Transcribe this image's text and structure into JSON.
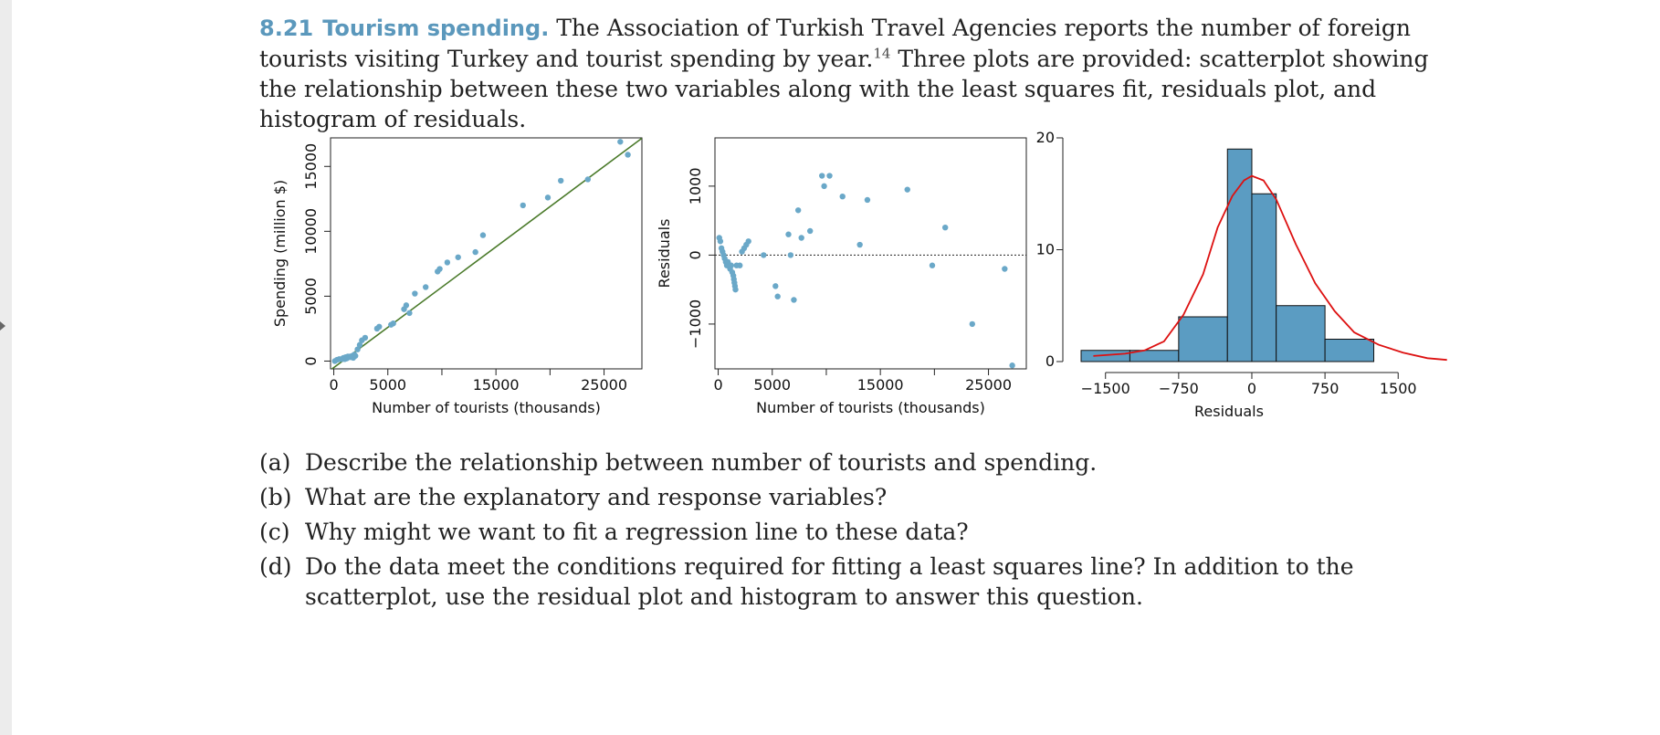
{
  "problem": {
    "number": "8.21",
    "title": "Tourism spending.",
    "text_before": " The Association of Turkish Travel Agencies reports the number of foreign tourists visiting Turkey and tourist spending by year.",
    "footnote": "14",
    "text_after": " Three plots are provided: scatterplot showing the relationship between these two variables along with the least squares fit, residuals plot, and histogram of residuals."
  },
  "chart_data": [
    {
      "type": "scatter",
      "xlabel": "Number of tourists (thousands)",
      "ylabel": "Spending (million $)",
      "xlim": [
        -300,
        28500
      ],
      "ylim": [
        -600,
        17200
      ],
      "xticks": [
        0,
        5000,
        15000,
        25000
      ],
      "xticks_unlabeled": [
        10000,
        20000
      ],
      "yticks": [
        0,
        5000,
        10000,
        15000
      ],
      "point_color": "#6aa8c8",
      "line_color": "#4a7a2a",
      "fit_line": {
        "intercept": -500,
        "slope": 0.62
      },
      "points": [
        {
          "x": 100,
          "y": 0
        },
        {
          "x": 300,
          "y": 100
        },
        {
          "x": 500,
          "y": 150
        },
        {
          "x": 700,
          "y": 150
        },
        {
          "x": 900,
          "y": 250
        },
        {
          "x": 1000,
          "y": 150
        },
        {
          "x": 1100,
          "y": 300
        },
        {
          "x": 1200,
          "y": 200
        },
        {
          "x": 1300,
          "y": 350
        },
        {
          "x": 1400,
          "y": 300
        },
        {
          "x": 1500,
          "y": 350
        },
        {
          "x": 1600,
          "y": 300
        },
        {
          "x": 1700,
          "y": 400
        },
        {
          "x": 1800,
          "y": 250
        },
        {
          "x": 1900,
          "y": 500
        },
        {
          "x": 2000,
          "y": 400
        },
        {
          "x": 2200,
          "y": 900
        },
        {
          "x": 2400,
          "y": 1250
        },
        {
          "x": 2600,
          "y": 1600
        },
        {
          "x": 2900,
          "y": 1800
        },
        {
          "x": 4000,
          "y": 2500
        },
        {
          "x": 4200,
          "y": 2650
        },
        {
          "x": 5300,
          "y": 2800
        },
        {
          "x": 5500,
          "y": 2900
        },
        {
          "x": 6500,
          "y": 4000
        },
        {
          "x": 6700,
          "y": 4300
        },
        {
          "x": 7000,
          "y": 3700
        },
        {
          "x": 7500,
          "y": 5200
        },
        {
          "x": 8500,
          "y": 5700
        },
        {
          "x": 9600,
          "y": 6900
        },
        {
          "x": 9800,
          "y": 7100
        },
        {
          "x": 10500,
          "y": 7600
        },
        {
          "x": 11500,
          "y": 8000
        },
        {
          "x": 13100,
          "y": 8400
        },
        {
          "x": 13800,
          "y": 9700
        },
        {
          "x": 17500,
          "y": 12000
        },
        {
          "x": 19800,
          "y": 12600
        },
        {
          "x": 21000,
          "y": 13900
        },
        {
          "x": 23500,
          "y": 14000
        },
        {
          "x": 26500,
          "y": 16900
        },
        {
          "x": 27200,
          "y": 15900
        }
      ]
    },
    {
      "type": "scatter",
      "xlabel": "Number of tourists (thousands)",
      "ylabel": "Residuals",
      "xlim": [
        -300,
        28500
      ],
      "ylim": [
        -1650,
        1700
      ],
      "xticks": [
        0,
        5000,
        15000,
        25000
      ],
      "xticks_unlabeled": [
        10000,
        20000
      ],
      "yticks": [
        -1000,
        0,
        1000
      ],
      "reference_line": 0,
      "point_color": "#6aa8c8",
      "points": [
        {
          "x": 100,
          "y": 250
        },
        {
          "x": 200,
          "y": 200
        },
        {
          "x": 300,
          "y": 100
        },
        {
          "x": 400,
          "y": 50
        },
        {
          "x": 500,
          "y": 0
        },
        {
          "x": 600,
          "y": -50
        },
        {
          "x": 700,
          "y": -100
        },
        {
          "x": 800,
          "y": -150
        },
        {
          "x": 900,
          "y": -100
        },
        {
          "x": 1000,
          "y": -150
        },
        {
          "x": 1100,
          "y": -200
        },
        {
          "x": 1200,
          "y": -150
        },
        {
          "x": 1300,
          "y": -250
        },
        {
          "x": 1400,
          "y": -300
        },
        {
          "x": 1450,
          "y": -350
        },
        {
          "x": 1500,
          "y": -400
        },
        {
          "x": 1550,
          "y": -450
        },
        {
          "x": 1600,
          "y": -500
        },
        {
          "x": 1700,
          "y": -150
        },
        {
          "x": 2000,
          "y": -150
        },
        {
          "x": 2200,
          "y": 50
        },
        {
          "x": 2400,
          "y": 100
        },
        {
          "x": 2600,
          "y": 150
        },
        {
          "x": 2800,
          "y": 200
        },
        {
          "x": 4200,
          "y": 0
        },
        {
          "x": 5300,
          "y": -450
        },
        {
          "x": 5500,
          "y": -600
        },
        {
          "x": 6500,
          "y": 300
        },
        {
          "x": 6700,
          "y": 0
        },
        {
          "x": 7000,
          "y": -650
        },
        {
          "x": 7400,
          "y": 650
        },
        {
          "x": 7700,
          "y": 250
        },
        {
          "x": 8500,
          "y": 350
        },
        {
          "x": 9600,
          "y": 1150
        },
        {
          "x": 9800,
          "y": 1000
        },
        {
          "x": 10300,
          "y": 1150
        },
        {
          "x": 11500,
          "y": 850
        },
        {
          "x": 13100,
          "y": 150
        },
        {
          "x": 13800,
          "y": 800
        },
        {
          "x": 17500,
          "y": 950
        },
        {
          "x": 19800,
          "y": -150
        },
        {
          "x": 21000,
          "y": 400
        },
        {
          "x": 23500,
          "y": -1000
        },
        {
          "x": 26500,
          "y": -200
        },
        {
          "x": 27200,
          "y": -1600
        }
      ]
    },
    {
      "type": "histogram",
      "xlabel": "Residuals",
      "ylabel": "",
      "xlim": [
        -1825,
        2050
      ],
      "ylim": [
        0,
        20
      ],
      "xticks": [
        -1500,
        -750,
        0,
        750,
        1500
      ],
      "yticks": [
        0,
        10,
        20
      ],
      "bar_color": "#5b9cc2",
      "curve_color": "#dd1111",
      "bins": [
        {
          "from": -1750,
          "to": -1250,
          "count": 1
        },
        {
          "from": -1250,
          "to": -750,
          "count": 1
        },
        {
          "from": -750,
          "to": -250,
          "count": 4
        },
        {
          "from": -250,
          "to": 0,
          "count": 19
        },
        {
          "from": 0,
          "to": 250,
          "count": 15
        },
        {
          "from": 250,
          "to": 750,
          "count": 5
        },
        {
          "from": 750,
          "to": 1250,
          "count": 2
        }
      ],
      "density_curve": [
        [
          -1625,
          0.5
        ],
        [
          -1300,
          0.7
        ],
        [
          -1100,
          1.0
        ],
        [
          -900,
          1.8
        ],
        [
          -700,
          4.2
        ],
        [
          -500,
          7.8
        ],
        [
          -350,
          12.0
        ],
        [
          -200,
          14.8
        ],
        [
          -80,
          16.2
        ],
        [
          0,
          16.6
        ],
        [
          120,
          16.2
        ],
        [
          250,
          14.5
        ],
        [
          450,
          10.5
        ],
        [
          650,
          7.0
        ],
        [
          850,
          4.5
        ],
        [
          1050,
          2.6
        ],
        [
          1300,
          1.5
        ],
        [
          1550,
          0.8
        ],
        [
          1800,
          0.3
        ],
        [
          2000,
          0.15
        ]
      ]
    }
  ],
  "questions": [
    {
      "label": "(a)",
      "text": "Describe the relationship between number of tourists and spending."
    },
    {
      "label": "(b)",
      "text": "What are the explanatory and response variables?"
    },
    {
      "label": "(c)",
      "text": "Why might we want to fit a regression line to these data?"
    },
    {
      "label": "(d)",
      "text": "Do the data meet the conditions required for fitting a least squares line? In addition to the scatterplot, use the residual plot and histogram to answer this question."
    }
  ]
}
